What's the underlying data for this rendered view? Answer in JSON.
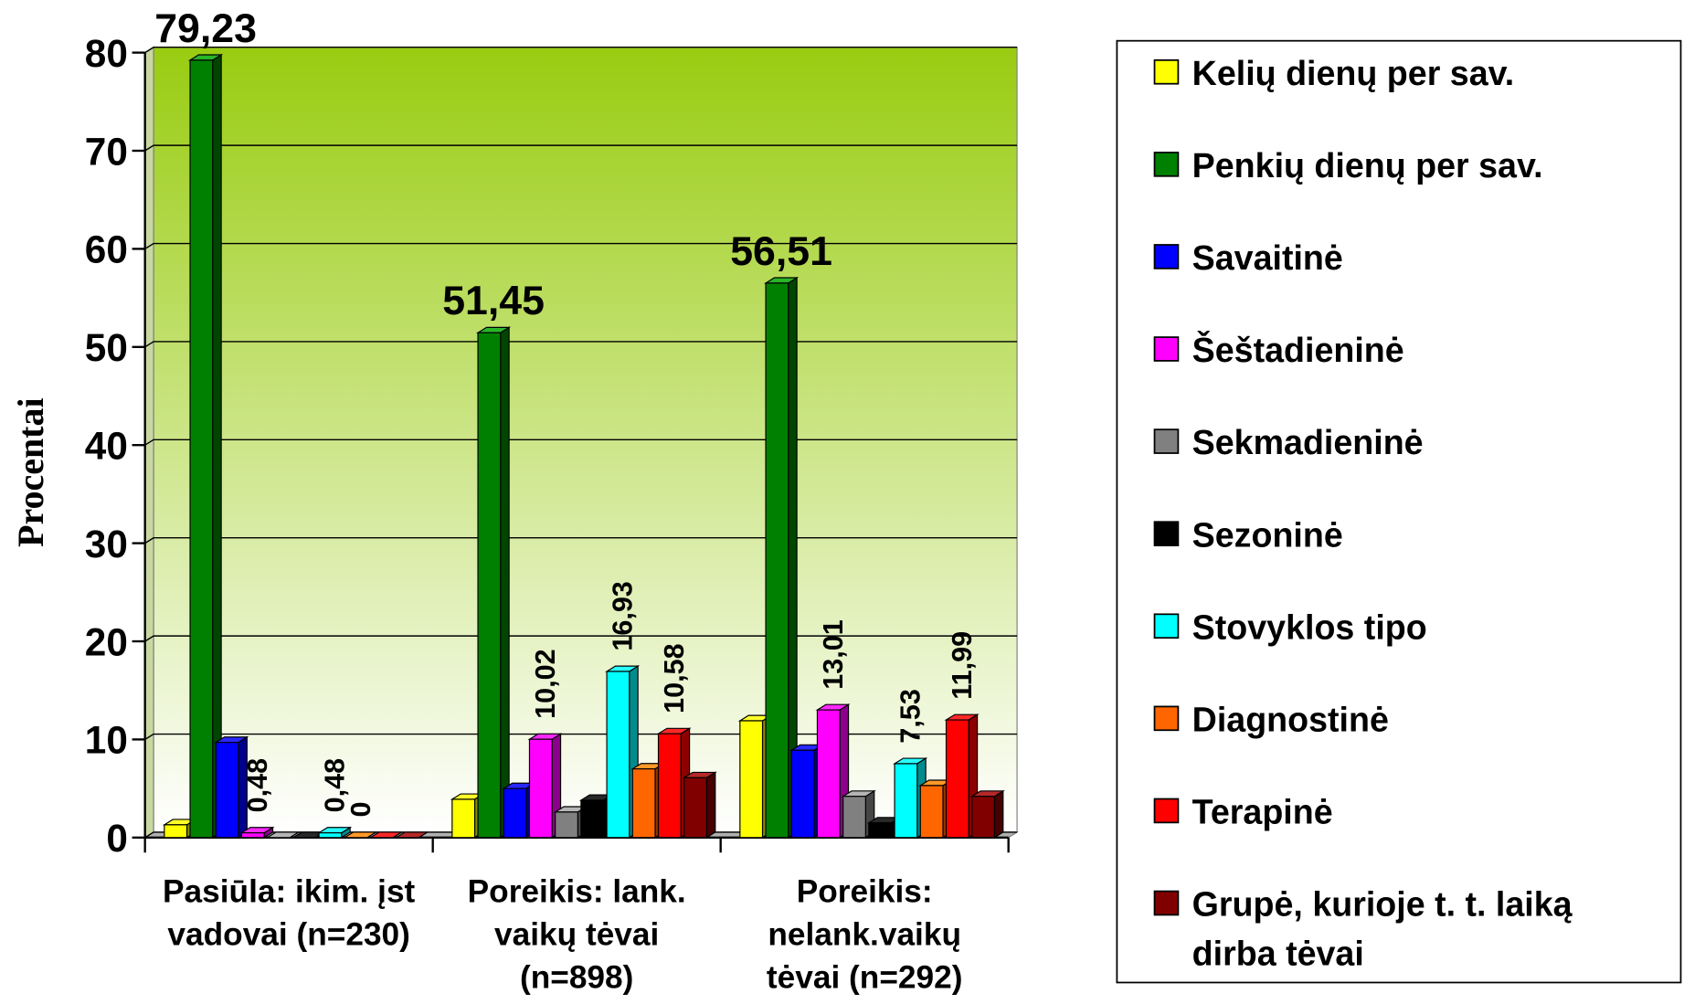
{
  "chart_data": {
    "type": "bar3d",
    "y_label": "Procentai",
    "categories": [
      "Pasiūla: ikim. įst vadovai (n=230)",
      "Poreikis: lank. vaikų tėvai (n=898)",
      "Poreikis: nelank.vaikų tėvai (n=292)"
    ],
    "ylim": [
      0,
      80
    ],
    "yticks": [
      0,
      10,
      20,
      30,
      40,
      50,
      60,
      70,
      80
    ],
    "grid": true,
    "legend": "right",
    "series": [
      {
        "name": "Kelių dienų per sav.",
        "color": "#ffff00",
        "values": [
          1.3,
          3.9,
          11.9
        ],
        "value_labels": [
          null,
          null,
          null
        ]
      },
      {
        "name": "Penkių dienų per sav.",
        "color": "#008000",
        "values": [
          79.23,
          51.45,
          56.51
        ],
        "value_labels": [
          "79,23",
          "51,45",
          "56,51"
        ]
      },
      {
        "name": "Savaitinė",
        "color": "#0000ff",
        "values": [
          9.7,
          5.0,
          8.9
        ],
        "value_labels": [
          null,
          null,
          null
        ]
      },
      {
        "name": "Šeštadieninė",
        "color": "#ff00ff",
        "values": [
          0.48,
          10.02,
          13.01
        ],
        "value_labels": [
          "0,48",
          "10,02",
          "13,01"
        ]
      },
      {
        "name": "Sekmadieninė",
        "color": "#808080",
        "values": [
          0,
          2.6,
          4.2
        ],
        "value_labels": [
          null,
          null,
          null
        ]
      },
      {
        "name": "Sezoninė",
        "color": "#000000",
        "values": [
          0,
          3.8,
          1.5
        ],
        "value_labels": [
          null,
          null,
          null
        ]
      },
      {
        "name": "Stovyklos tipo",
        "color": "#00ffff",
        "values": [
          0.48,
          16.93,
          7.53
        ],
        "value_labels": [
          "0,48",
          "16,93",
          "7,53"
        ]
      },
      {
        "name": "Diagnostinė",
        "color": "#ff6600",
        "values": [
          0,
          7.0,
          5.3
        ],
        "value_labels": [
          "0",
          null,
          null
        ]
      },
      {
        "name": "Terapinė",
        "color": "#ff0000",
        "values": [
          0,
          10.58,
          11.99
        ],
        "value_labels": [
          null,
          "10,58",
          "11,99"
        ]
      },
      {
        "name": "Grupė, kurioje t. t. laiką dirba tėvai",
        "color": "#800000",
        "values": [
          0,
          6.1,
          4.2
        ],
        "value_labels": [
          null,
          null,
          null
        ]
      }
    ]
  }
}
